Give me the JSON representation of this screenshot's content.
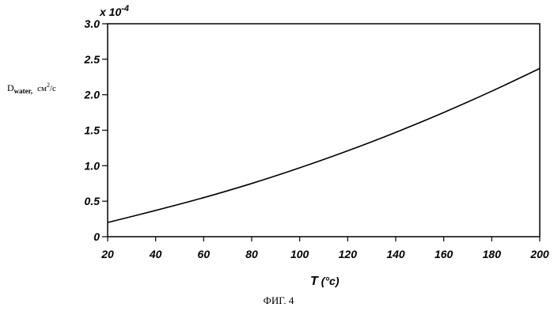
{
  "chart_data": {
    "type": "line",
    "title": "",
    "xlabel": {
      "main": "T",
      "unit": "(°c)"
    },
    "ylabel": {
      "main": "D",
      "sub": "water,",
      "unit_base": "см",
      "unit_sup": "2",
      "unit_rest": "/c"
    },
    "multiplier": {
      "base": "x 10",
      "exp": "-4"
    },
    "xlim": [
      20,
      200
    ],
    "ylim": [
      0,
      3.0
    ],
    "x_ticks": [
      20,
      40,
      60,
      80,
      100,
      120,
      140,
      160,
      180,
      200
    ],
    "y_ticks": [
      0,
      0.5,
      1.0,
      1.5,
      2.0,
      2.5,
      3.0
    ],
    "y_tick_labels": [
      "0",
      "0.5",
      "1.0",
      "1.5",
      "2.0",
      "2.5",
      "3.0"
    ],
    "series": [
      {
        "x": [
          20,
          40,
          60,
          80,
          100,
          120,
          140,
          160,
          180,
          200
        ],
        "y": [
          0.2,
          0.37,
          0.55,
          0.75,
          0.97,
          1.21,
          1.47,
          1.75,
          2.05,
          2.37
        ]
      }
    ]
  },
  "caption": "ФИГ. 4"
}
